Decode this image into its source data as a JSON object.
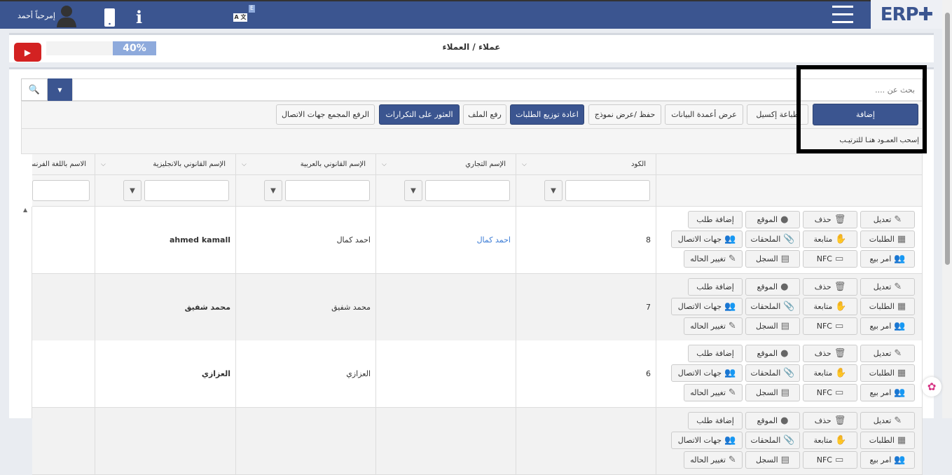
{
  "header": {
    "greeting": "إمرحباً أحمد",
    "lang_badge": "E",
    "logo": "ERP",
    "icons": [
      "user-icon",
      "mobile-icon",
      "info-icon",
      "translate-icon",
      "menu-icon"
    ]
  },
  "titlebar": {
    "breadcrumb": "عملاء / العملاء",
    "progress_label": "40%",
    "progress": 40,
    "video_icon": "youtube-icon"
  },
  "search": {
    "placeholder": "بحث عن ...."
  },
  "toolbar": {
    "add": "إضافة",
    "print_excel": "طباعة إكسيل",
    "show_columns": "عرض أعمدة البيانات",
    "save_view": "حفظ /عرض نموذج",
    "redistribute": "اعادة توزيع الطلبات",
    "upload": "رفع الملف",
    "find_duplicates": "العثور على التكرارات",
    "bulk_upload_contacts": "الرفع المجمع جهات الاتصال"
  },
  "group_hint": "إسحب العمـود هنـا للترتيـب",
  "columns": [
    "الكود",
    "الإسم التجاري",
    "الإسم القانوني بالعربية",
    "الإسم القانوني بالانجليزية",
    "الاسم باللغة الفرنسية"
  ],
  "actions": [
    "تعديل",
    "حذف",
    "الموقع",
    "إضافة طلب",
    "الطلبات",
    "متابعة",
    "الملحقات",
    "جهات الاتصال",
    "امر بيع",
    "NFC",
    "السجل",
    "تغيير الحاله"
  ],
  "rows": [
    {
      "code": "8",
      "trade": "احمد كمال",
      "legal_ar": "احمد كمال",
      "legal_en": "ahmed kamall",
      "fr": ""
    },
    {
      "code": "7",
      "trade": "",
      "legal_ar": "محمد شفيق",
      "legal_en": "محمد شفيق",
      "fr": ""
    },
    {
      "code": "6",
      "trade": "",
      "legal_ar": "العزازي",
      "legal_en": "العزازي",
      "fr": ""
    },
    {
      "code": "",
      "trade": "",
      "legal_ar": "",
      "legal_en": "",
      "fr": ""
    }
  ],
  "colors": {
    "brand": "#3b5590",
    "link": "#3a7bd5",
    "progress": "#8eaadc"
  }
}
